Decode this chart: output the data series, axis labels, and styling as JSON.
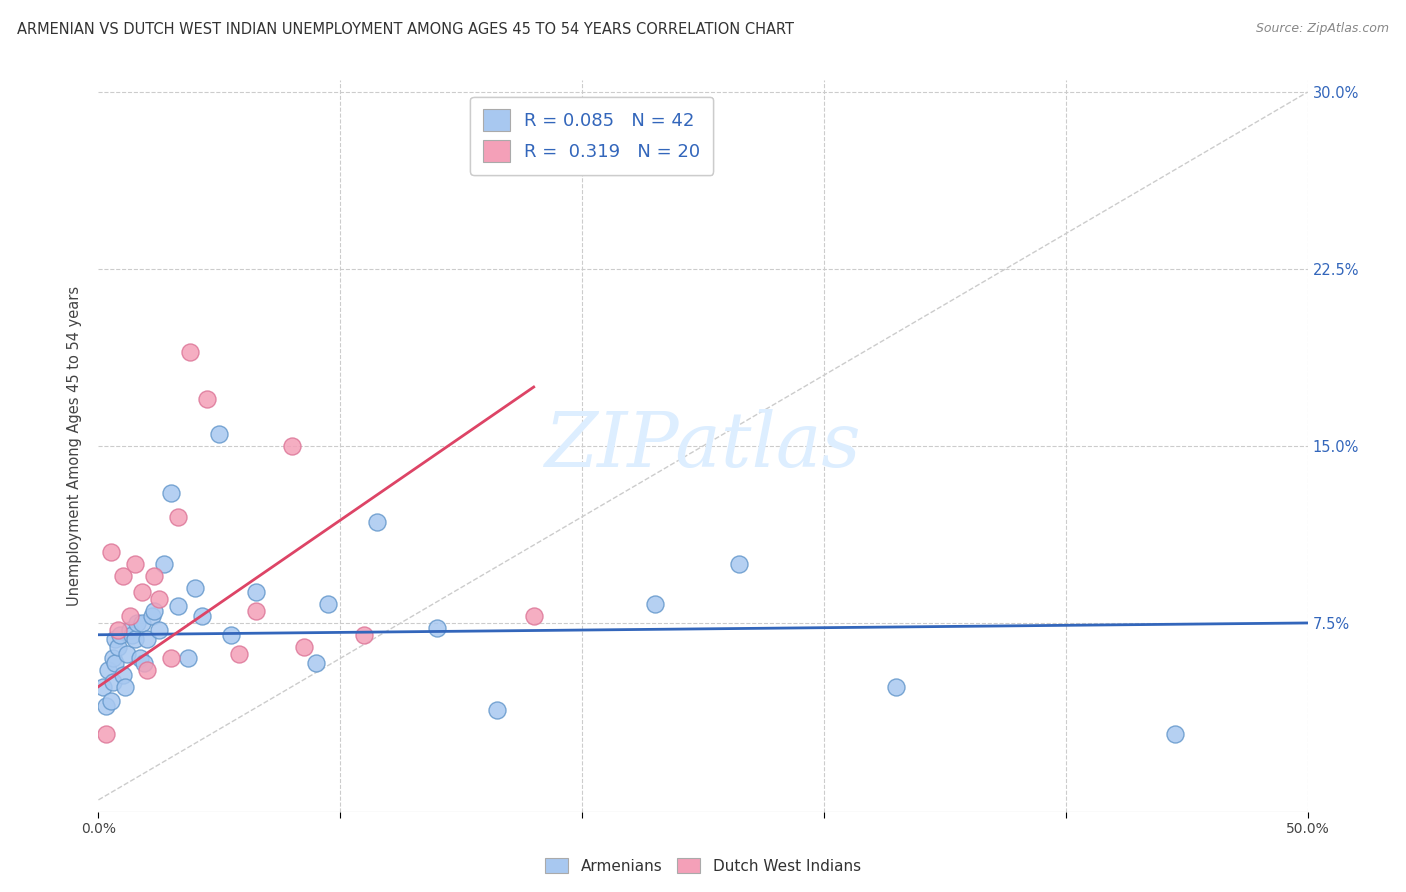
{
  "title": "ARMENIAN VS DUTCH WEST INDIAN UNEMPLOYMENT AMONG AGES 45 TO 54 YEARS CORRELATION CHART",
  "source": "Source: ZipAtlas.com",
  "ylabel": "Unemployment Among Ages 45 to 54 years",
  "xlim": [
    0.0,
    0.5
  ],
  "ylim": [
    -0.005,
    0.305
  ],
  "xticks": [
    0.0,
    0.1,
    0.2,
    0.3,
    0.4,
    0.5
  ],
  "xticklabels": [
    "0.0%",
    "",
    "",
    "",
    "",
    "50.0%"
  ],
  "yticks_right": [
    0.075,
    0.15,
    0.225,
    0.3
  ],
  "yticklabels_right": [
    "7.5%",
    "15.0%",
    "22.5%",
    "30.0%"
  ],
  "armenian_R": 0.085,
  "armenian_N": 42,
  "dutch_R": 0.319,
  "dutch_N": 20,
  "armenian_color": "#a8c8f0",
  "dutch_color": "#f4a0b8",
  "armenian_edge_color": "#6699cc",
  "dutch_edge_color": "#dd7799",
  "armenian_line_color": "#3366bb",
  "dutch_line_color": "#dd4466",
  "ref_line_color": "#cccccc",
  "watermark_color": "#ddeeff",
  "armenian_x": [
    0.002,
    0.003,
    0.004,
    0.005,
    0.006,
    0.006,
    0.007,
    0.007,
    0.008,
    0.009,
    0.01,
    0.011,
    0.012,
    0.013,
    0.014,
    0.015,
    0.016,
    0.017,
    0.018,
    0.019,
    0.02,
    0.022,
    0.023,
    0.025,
    0.027,
    0.03,
    0.033,
    0.037,
    0.04,
    0.043,
    0.05,
    0.055,
    0.065,
    0.09,
    0.095,
    0.115,
    0.14,
    0.165,
    0.23,
    0.265,
    0.33,
    0.445
  ],
  "armenian_y": [
    0.048,
    0.04,
    0.055,
    0.042,
    0.05,
    0.06,
    0.058,
    0.068,
    0.065,
    0.07,
    0.053,
    0.048,
    0.062,
    0.072,
    0.07,
    0.068,
    0.075,
    0.06,
    0.075,
    0.058,
    0.068,
    0.078,
    0.08,
    0.072,
    0.1,
    0.13,
    0.082,
    0.06,
    0.09,
    0.078,
    0.155,
    0.07,
    0.088,
    0.058,
    0.083,
    0.118,
    0.073,
    0.038,
    0.083,
    0.1,
    0.048,
    0.028
  ],
  "dutch_x": [
    0.003,
    0.005,
    0.008,
    0.01,
    0.013,
    0.015,
    0.018,
    0.02,
    0.023,
    0.025,
    0.03,
    0.033,
    0.038,
    0.045,
    0.058,
    0.065,
    0.08,
    0.085,
    0.11,
    0.18
  ],
  "dutch_y": [
    0.028,
    0.105,
    0.072,
    0.095,
    0.078,
    0.1,
    0.088,
    0.055,
    0.095,
    0.085,
    0.06,
    0.12,
    0.19,
    0.17,
    0.062,
    0.08,
    0.15,
    0.065,
    0.07,
    0.078
  ],
  "armenian_trend": [
    0.0,
    0.5,
    0.07,
    0.075
  ],
  "dutch_trend": [
    0.0,
    0.18,
    0.048,
    0.175
  ],
  "background_color": "#ffffff",
  "grid_color": "#cccccc"
}
